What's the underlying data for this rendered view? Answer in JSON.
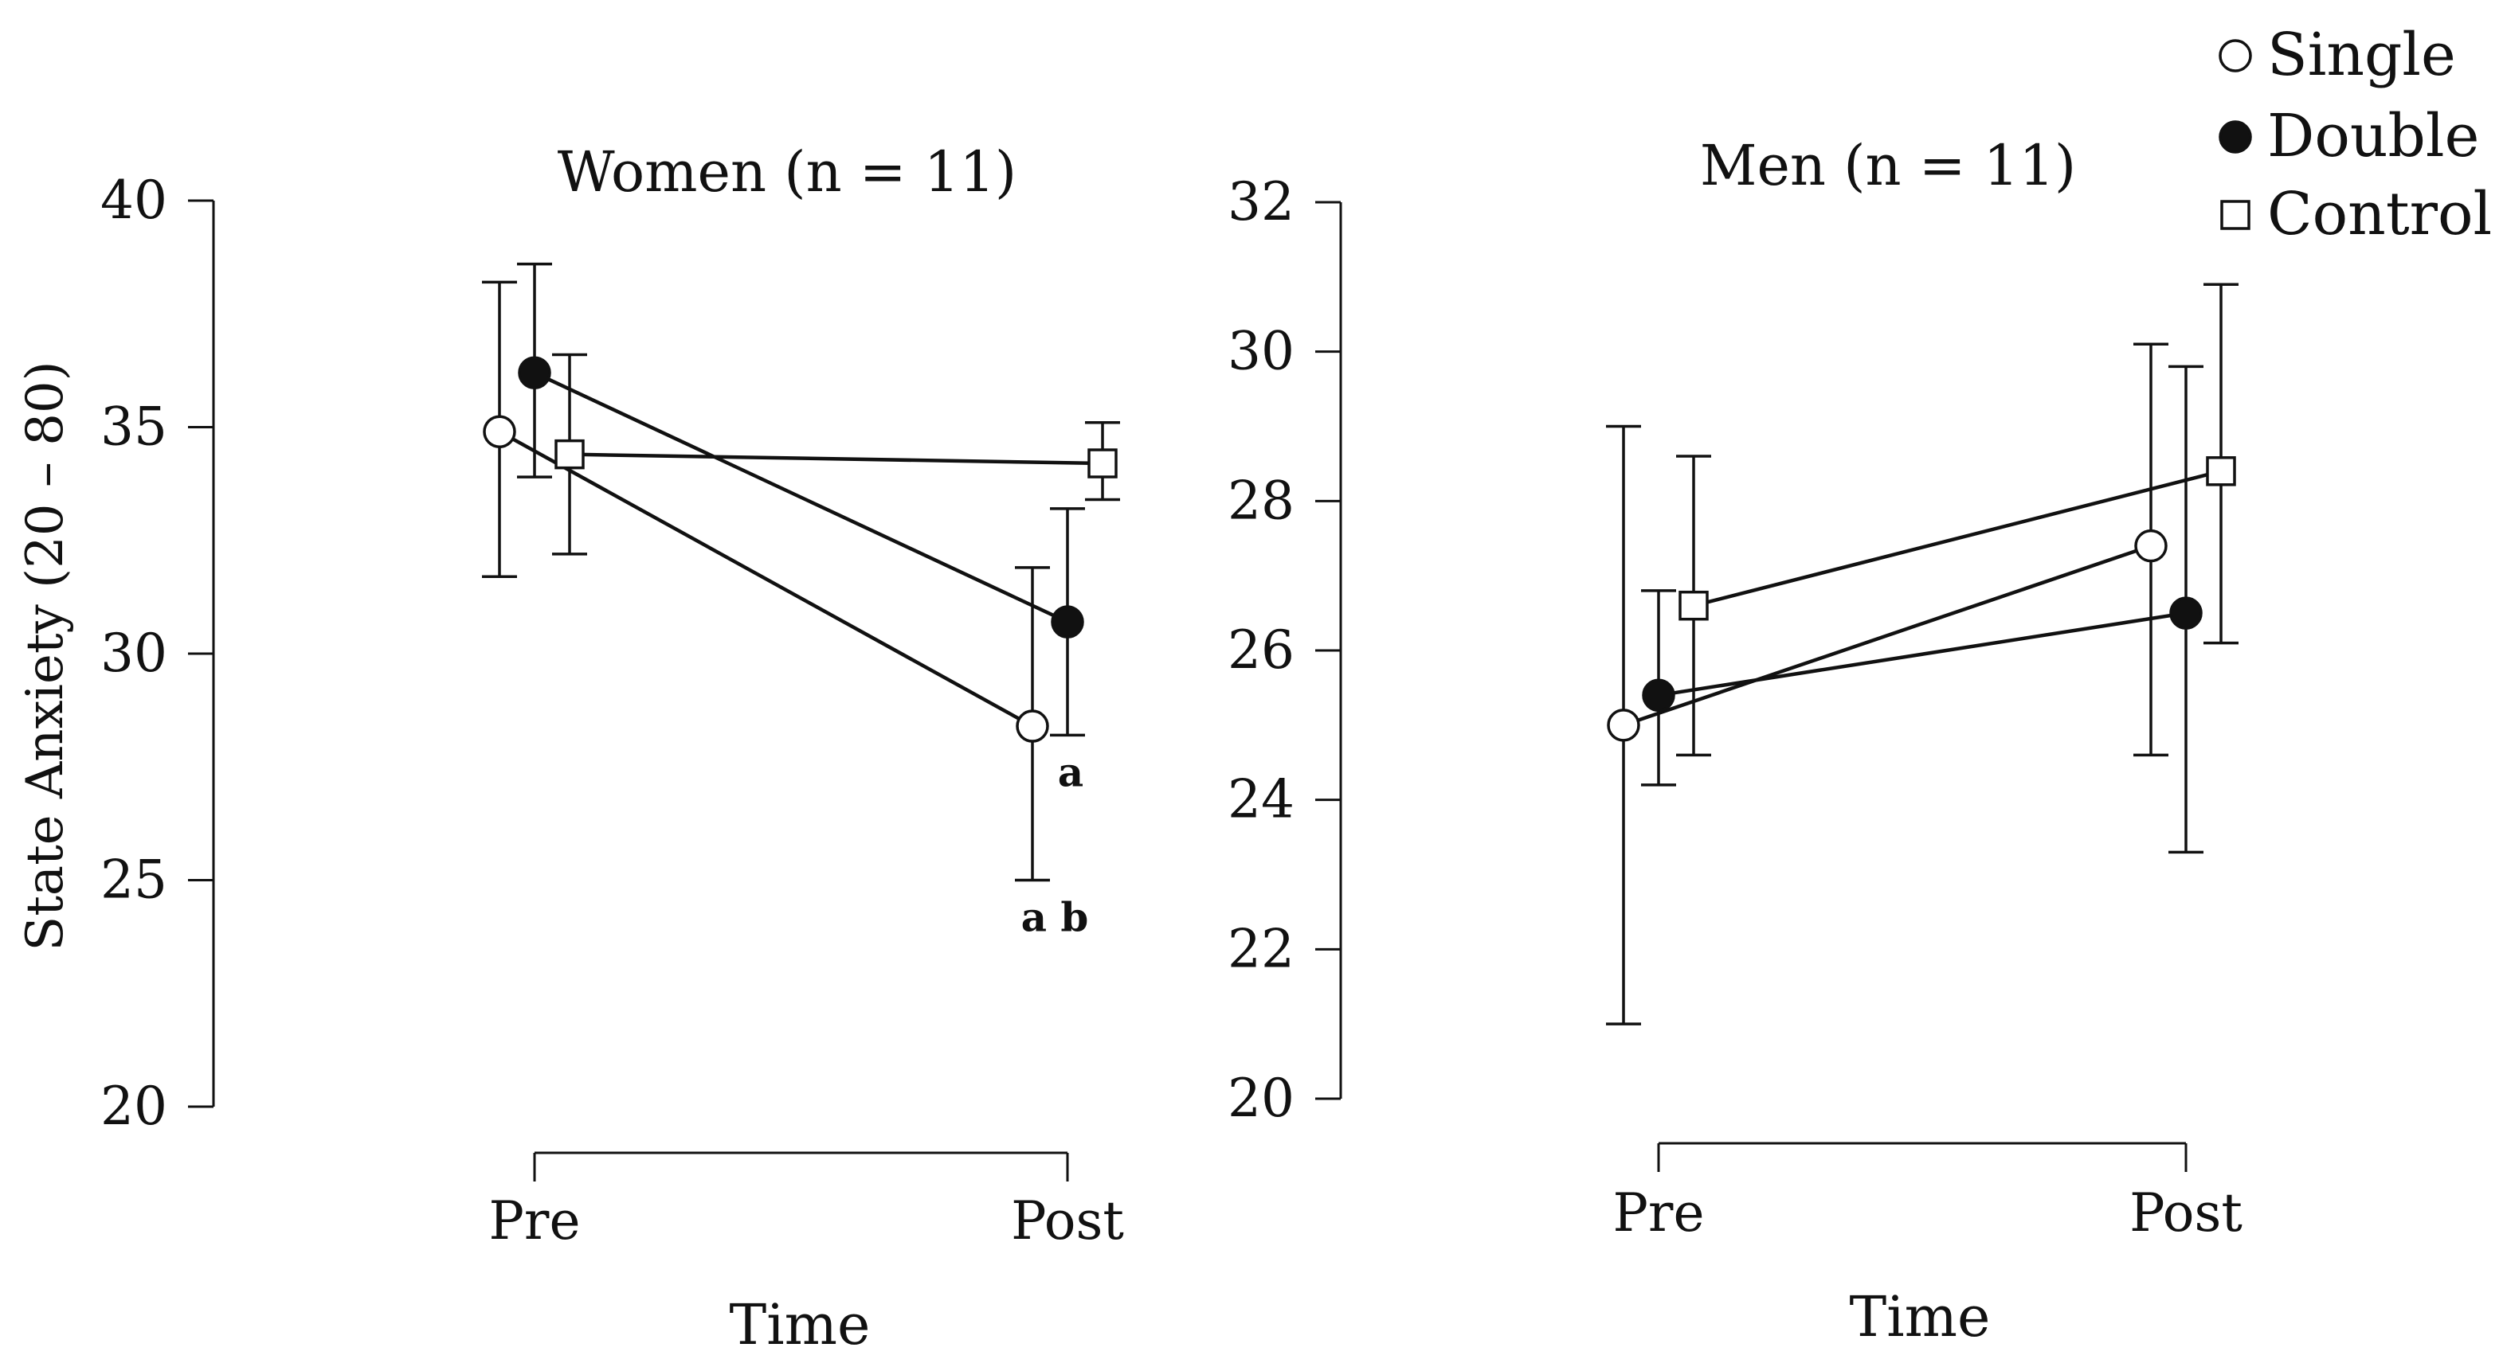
{
  "legend": [
    {
      "name": "Single",
      "marker": "circle-open"
    },
    {
      "name": "Double",
      "marker": "circle-filled"
    },
    {
      "name": "Control",
      "marker": "square-open"
    }
  ],
  "chart_data": [
    {
      "type": "line",
      "title": "Women (n = 11)",
      "xlabel": "Time",
      "ylabel": "State Anxiety (20 – 80)",
      "categories": [
        "Pre",
        "Post"
      ],
      "ylim": [
        20,
        40
      ],
      "yticks": [
        20,
        25,
        30,
        35,
        40
      ],
      "series": [
        {
          "name": "Single",
          "marker": "circle-open",
          "values": [
            34.9,
            28.4
          ],
          "err_low": [
            31.7,
            25.0
          ],
          "err_high": [
            38.2,
            31.9
          ]
        },
        {
          "name": "Double",
          "marker": "circle-filled",
          "values": [
            36.2,
            30.7
          ],
          "err_low": [
            33.9,
            28.2
          ],
          "err_high": [
            38.6,
            33.2
          ]
        },
        {
          "name": "Control",
          "marker": "square-open",
          "values": [
            34.4,
            34.2
          ],
          "err_low": [
            32.2,
            33.4
          ],
          "err_high": [
            36.6,
            35.1
          ]
        }
      ],
      "annotations": [
        {
          "text": "a",
          "series": "Double",
          "category": "Post"
        },
        {
          "text": "a b",
          "series": "Single",
          "category": "Post"
        }
      ]
    },
    {
      "type": "line",
      "title": "Men (n = 11)",
      "xlabel": "Time",
      "ylabel": "",
      "categories": [
        "Pre",
        "Post"
      ],
      "ylim": [
        20,
        32
      ],
      "yticks": [
        20,
        22,
        24,
        26,
        28,
        30,
        32
      ],
      "series": [
        {
          "name": "Single",
          "marker": "circle-open",
          "values": [
            25.0,
            27.4
          ],
          "err_low": [
            21.0,
            24.6
          ],
          "err_high": [
            29.0,
            30.1
          ]
        },
        {
          "name": "Double",
          "marker": "circle-filled",
          "values": [
            25.4,
            26.5
          ],
          "err_low": [
            24.2,
            23.3
          ],
          "err_high": [
            26.8,
            29.8
          ]
        },
        {
          "name": "Control",
          "marker": "square-open",
          "values": [
            26.6,
            28.4
          ],
          "err_low": [
            24.6,
            26.1
          ],
          "err_high": [
            28.6,
            30.9
          ]
        }
      ]
    }
  ]
}
